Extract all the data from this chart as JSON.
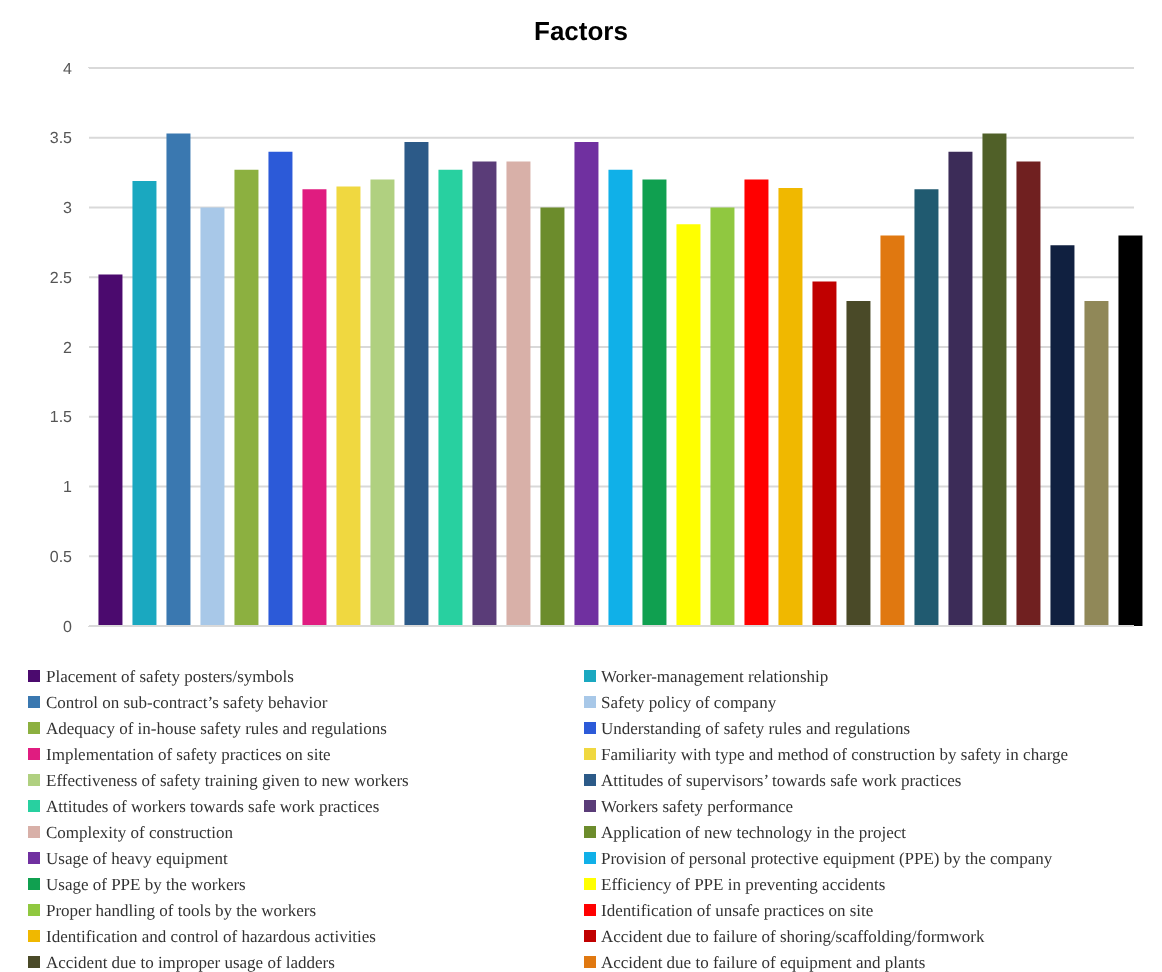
{
  "chart_data": {
    "type": "bar",
    "title": "Factors",
    "categories": [
      null
    ],
    "ylim": [
      0,
      4
    ],
    "yticks": [
      0,
      0.5,
      1,
      1.5,
      2,
      2.5,
      3,
      3.5,
      4
    ],
    "grid": "y",
    "legend": "bottom",
    "series": [
      {
        "name": "Placement of safety posters/symbols",
        "color": "#4b0a6e",
        "values": [
          2.52
        ]
      },
      {
        "name": "Worker-management relationship",
        "color": "#1aa8c0",
        "values": [
          3.19
        ]
      },
      {
        "name": "Control on sub-contract’s safety behavior",
        "color": "#3a78b0",
        "values": [
          3.53
        ]
      },
      {
        "name": "Safety policy of company",
        "color": "#a8c8e8",
        "values": [
          3.0
        ]
      },
      {
        "name": "Adequacy of in-house safety rules and regulations",
        "color": "#8cb040",
        "values": [
          3.27
        ]
      },
      {
        "name": "Understanding of safety rules and regulations",
        "color": "#2c5ad8",
        "values": [
          3.4
        ]
      },
      {
        "name": "Implementation of safety practices on site",
        "color": "#e01c80",
        "values": [
          3.13
        ]
      },
      {
        "name": "Familiarity with type and method of construction by safety in charge",
        "color": "#f0d840",
        "values": [
          3.15
        ]
      },
      {
        "name": "Effectiveness of safety training given to new workers",
        "color": "#b0d080",
        "values": [
          3.2
        ]
      },
      {
        "name": "Attitudes of supervisors’ towards safe work practices",
        "color": "#2c5a88",
        "values": [
          3.47
        ]
      },
      {
        "name": "Attitudes of workers towards safe work practices",
        "color": "#28d0a0",
        "values": [
          3.27
        ]
      },
      {
        "name": "Workers safety performance",
        "color": "#5a3c78",
        "values": [
          3.33
        ]
      },
      {
        "name": "Complexity of construction",
        "color": "#d8b0a8",
        "values": [
          3.33
        ]
      },
      {
        "name": "Application of new technology in the project",
        "color": "#6c8c2c",
        "values": [
          3.0
        ]
      },
      {
        "name": "Usage of heavy equipment",
        "color": "#7030a0",
        "values": [
          3.47
        ]
      },
      {
        "name": "Provision of personal protective equipment (PPE) by the company",
        "color": "#10b0e8",
        "values": [
          3.27
        ]
      },
      {
        "name": "Usage of PPE by the workers",
        "color": "#10a050",
        "values": [
          3.2
        ]
      },
      {
        "name": "Efficiency of PPE in preventing accidents",
        "color": "#ffff00",
        "values": [
          2.88
        ]
      },
      {
        "name": "Proper handling of tools by the workers",
        "color": "#90c840",
        "values": [
          3.0
        ]
      },
      {
        "name": "Identification of unsafe practices on site",
        "color": "#ff0000",
        "values": [
          3.2
        ]
      },
      {
        "name": "Identification and control of hazardous activities",
        "color": "#f0b800",
        "values": [
          3.14
        ]
      },
      {
        "name": "Accident due to failure of shoring/scaffolding/formwork",
        "color": "#c00000",
        "values": [
          2.47
        ]
      },
      {
        "name": "Accident due to improper usage of ladders",
        "color": "#4a4a28",
        "values": [
          2.33
        ]
      },
      {
        "name": "Accident due to failure of equipment and plants",
        "color": "#e07810",
        "values": [
          2.8
        ]
      },
      {
        "color": "#205a70",
        "values": [
          3.13
        ]
      },
      {
        "color": "#3c2c58",
        "values": [
          3.4
        ]
      },
      {
        "color": "#506028",
        "values": [
          3.53
        ]
      },
      {
        "color": "#702020",
        "values": [
          3.33
        ]
      },
      {
        "color": "#102040",
        "values": [
          2.73
        ]
      },
      {
        "color": "#908858",
        "values": [
          2.33
        ]
      },
      {
        "color": "#000000",
        "values": [
          2.8
        ]
      }
    ]
  }
}
